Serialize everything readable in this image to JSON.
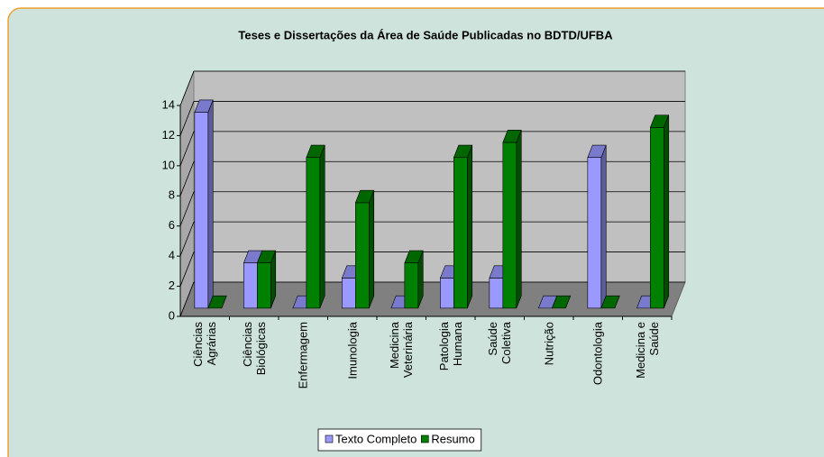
{
  "chart_data": {
    "type": "bar3d",
    "title": "Teses e Dissertações da Área de Saúde Publicadas no BDTD/UFBA",
    "categories": [
      "Ciências Agrárias",
      "Ciências Biológicas",
      "Enfermagem",
      "Imunologia",
      "Medicina Veterinária",
      "Patologia Humana",
      "Saúde Coletiva",
      "Nutrição",
      "Odontologia",
      "Medicina e Saúde"
    ],
    "series": [
      {
        "name": "Texto Completo",
        "color": "#9999ff",
        "values": [
          13,
          3,
          0,
          2,
          0,
          2,
          2,
          0,
          10,
          0
        ]
      },
      {
        "name": "Resumo",
        "color": "#008000",
        "values": [
          0,
          3,
          10,
          7,
          3,
          10,
          11,
          0,
          0,
          12
        ]
      }
    ],
    "ylim": [
      0,
      14
    ],
    "yticks": [
      0,
      2,
      4,
      6,
      8,
      10,
      12,
      14
    ],
    "grid": true,
    "legend": "bottom"
  }
}
